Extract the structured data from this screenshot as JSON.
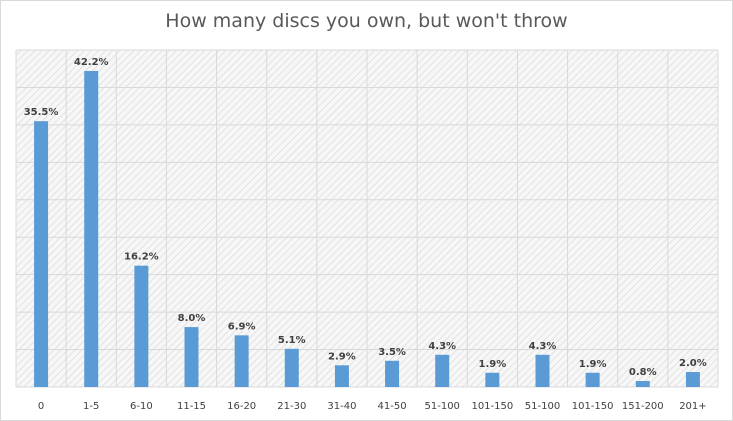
{
  "chart_data": {
    "type": "bar",
    "title": "How many discs  you own, but won't throw",
    "xlabel": "",
    "ylabel": "",
    "categories": [
      "0",
      "1-5",
      "6-10",
      "11-15",
      "16-20",
      "21-30",
      "31-40",
      "41-50",
      "51-100",
      "101-150",
      "51-100",
      "101-150",
      "151-200",
      "201+"
    ],
    "values": [
      35.5,
      42.2,
      16.2,
      8.0,
      6.9,
      5.1,
      2.9,
      3.5,
      4.3,
      1.9,
      4.3,
      1.9,
      0.8,
      2.0
    ],
    "data_labels": [
      "35.5%",
      "42.2%",
      "16.2%",
      "8.0%",
      "6.9%",
      "5.1%",
      "2.9%",
      "3.5%",
      "4.3%",
      "1.9%",
      "4.3%",
      "1.9%",
      "0.8%",
      "2.0%"
    ],
    "ylim": [
      0,
      45
    ],
    "grid": true,
    "legend": "none",
    "bar_color": "#5b9bd5",
    "grid_color": "#d9d9d9",
    "plot_background": "hatched-gray"
  }
}
